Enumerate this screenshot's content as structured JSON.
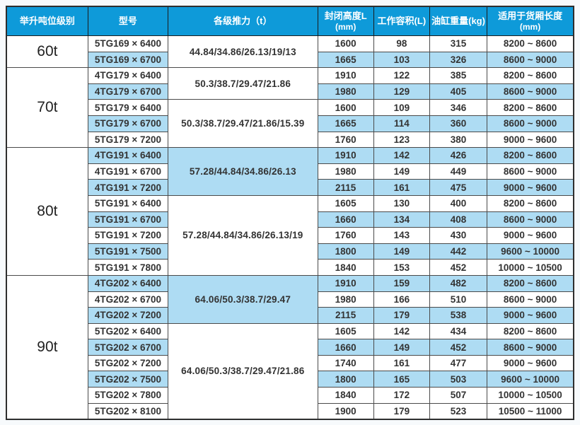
{
  "colors": {
    "header_bg": "#0e9ad9",
    "row_highlight": "#aedcf3",
    "border": "#4a4a4a",
    "header_text": "#ffffff",
    "body_text": "#333333"
  },
  "table": {
    "headers": [
      {
        "label": "举升吨位级别",
        "sub": ""
      },
      {
        "label": "型号",
        "sub": ""
      },
      {
        "label": "各级推力（t）",
        "sub": ""
      },
      {
        "label": "封闭高度L",
        "sub": "(mm)"
      },
      {
        "label": "工作容积(L)",
        "sub": ""
      },
      {
        "label": "油缸重量(kg)",
        "sub": ""
      },
      {
        "label": "适用于货厢长度",
        "sub": "(mm)"
      }
    ],
    "groups": [
      {
        "tonnage": "60t",
        "subgroups": [
          {
            "thrust": "44.84/34.86/26.13/19/13",
            "thrust_highlight": false,
            "rows": [
              {
                "model": "5TG169 × 6400",
                "closed_height": "1600",
                "working_volume": "98",
                "weight": "315",
                "box_length": "8200 ~ 8600",
                "highlight": false
              },
              {
                "model": "5TG169 × 6700",
                "closed_height": "1665",
                "working_volume": "103",
                "weight": "326",
                "box_length": "8600 ~ 9000",
                "highlight": true
              }
            ]
          }
        ]
      },
      {
        "tonnage": "70t",
        "subgroups": [
          {
            "thrust": "50.3/38.7/29.47/21.86",
            "thrust_highlight": false,
            "rows": [
              {
                "model": "4TG179 × 6400",
                "closed_height": "1910",
                "working_volume": "122",
                "weight": "385",
                "box_length": "8200 ~ 8600",
                "highlight": false
              },
              {
                "model": "4TG179 × 6700",
                "closed_height": "1980",
                "working_volume": "129",
                "weight": "405",
                "box_length": "8600 ~ 9000",
                "highlight": true
              }
            ]
          },
          {
            "thrust": "50.3/38.7/29.47/21.86/15.39",
            "thrust_highlight": false,
            "rows": [
              {
                "model": "5TG179 × 6400",
                "closed_height": "1600",
                "working_volume": "109",
                "weight": "346",
                "box_length": "8200 ~ 8600",
                "highlight": false
              },
              {
                "model": "5TG179 × 6700",
                "closed_height": "1665",
                "working_volume": "114",
                "weight": "360",
                "box_length": "8600 ~ 9000",
                "highlight": true
              },
              {
                "model": "5TG179 × 7200",
                "closed_height": "1760",
                "working_volume": "123",
                "weight": "380",
                "box_length": "9000 ~ 9600",
                "highlight": false
              }
            ]
          }
        ]
      },
      {
        "tonnage": "80t",
        "subgroups": [
          {
            "thrust": "57.28/44.84/34.86/26.13",
            "thrust_highlight": true,
            "rows": [
              {
                "model": "4TG191 × 6400",
                "closed_height": "1910",
                "working_volume": "142",
                "weight": "426",
                "box_length": "8200 ~ 8600",
                "highlight": true
              },
              {
                "model": "4TG191 × 6700",
                "closed_height": "1980",
                "working_volume": "149",
                "weight": "449",
                "box_length": "8600 ~ 9000",
                "highlight": false
              },
              {
                "model": "4TG191 × 7200",
                "closed_height": "2115",
                "working_volume": "161",
                "weight": "475",
                "box_length": "9000 ~ 9600",
                "highlight": true
              }
            ]
          },
          {
            "thrust": "57.28/44.84/34.86/26.13/19",
            "thrust_highlight": false,
            "rows": [
              {
                "model": "5TG191 × 6400",
                "closed_height": "1605",
                "working_volume": "130",
                "weight": "400",
                "box_length": "8200 ~ 8600",
                "highlight": false
              },
              {
                "model": "5TG191 × 6700",
                "closed_height": "1660",
                "working_volume": "134",
                "weight": "408",
                "box_length": "8600 ~ 9000",
                "highlight": true
              },
              {
                "model": "5TG191 × 7200",
                "closed_height": "1760",
                "working_volume": "143",
                "weight": "430",
                "box_length": "9000 ~ 9600",
                "highlight": false
              },
              {
                "model": "5TG191 × 7500",
                "closed_height": "1800",
                "working_volume": "149",
                "weight": "442",
                "box_length": "9600 ~ 10000",
                "highlight": true
              },
              {
                "model": "5TG191 × 7800",
                "closed_height": "1840",
                "working_volume": "153",
                "weight": "452",
                "box_length": "10000 ~ 10500",
                "highlight": false
              }
            ]
          }
        ]
      },
      {
        "tonnage": "90t",
        "subgroups": [
          {
            "thrust": "64.06/50.3/38.7/29.47",
            "thrust_highlight": true,
            "rows": [
              {
                "model": "4TG202 × 6400",
                "closed_height": "1910",
                "working_volume": "159",
                "weight": "482",
                "box_length": "8200 ~ 8600",
                "highlight": true
              },
              {
                "model": "4TG202 × 6700",
                "closed_height": "1980",
                "working_volume": "166",
                "weight": "510",
                "box_length": "8600 ~ 9000",
                "highlight": false
              },
              {
                "model": "4TG202 × 7200",
                "closed_height": "2115",
                "working_volume": "179",
                "weight": "538",
                "box_length": "9000 ~ 9600",
                "highlight": true
              }
            ]
          },
          {
            "thrust": "64.06/50.3/38.7/29.47/21.86",
            "thrust_highlight": false,
            "rows": [
              {
                "model": "5TG202 × 6400",
                "closed_height": "1605",
                "working_volume": "142",
                "weight": "434",
                "box_length": "8200 ~ 8600",
                "highlight": false
              },
              {
                "model": "5TG202 × 6700",
                "closed_height": "1660",
                "working_volume": "149",
                "weight": "452",
                "box_length": "8600 ~ 9000",
                "highlight": true
              },
              {
                "model": "5TG202 × 7200",
                "closed_height": "1740",
                "working_volume": "161",
                "weight": "477",
                "box_length": "9000 ~ 9600",
                "highlight": false
              },
              {
                "model": "5TG202 × 7500",
                "closed_height": "1800",
                "working_volume": "165",
                "weight": "503",
                "box_length": "9600 ~ 10000",
                "highlight": true
              },
              {
                "model": "5TG202 × 7800",
                "closed_height": "1840",
                "working_volume": "172",
                "weight": "507",
                "box_length": "10000 ~ 10500",
                "highlight": false
              },
              {
                "model": "5TG202 × 8100",
                "closed_height": "1900",
                "working_volume": "179",
                "weight": "523",
                "box_length": "10500 ~ 11000",
                "highlight": false
              }
            ]
          }
        ]
      }
    ]
  }
}
